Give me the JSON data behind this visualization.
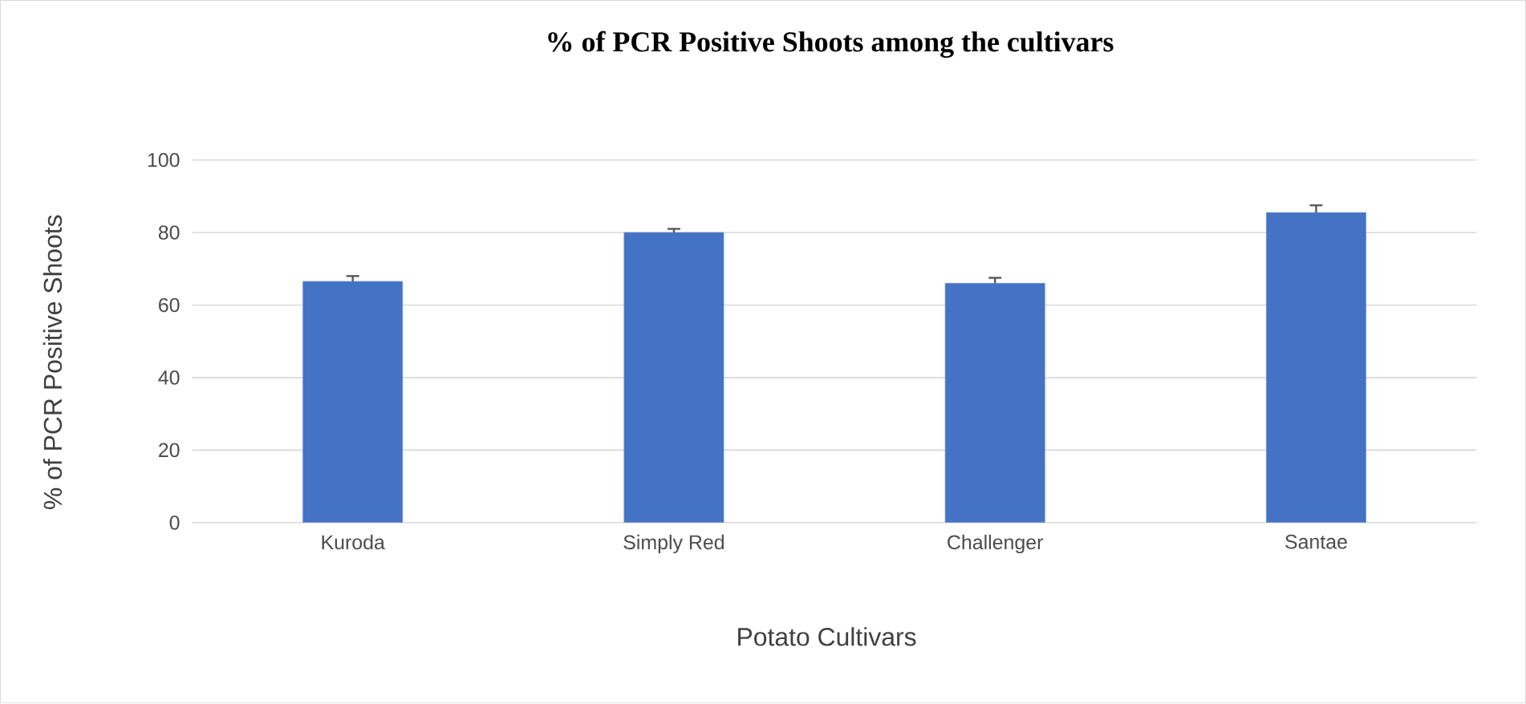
{
  "chart_data": {
    "type": "bar",
    "title": "% of PCR  Positive Shoots among the cultivars",
    "xlabel": "Potato Cultivars",
    "ylabel": "% of PCR Positive Shoots",
    "categories": [
      "Kuroda",
      "Simply Red",
      "Challenger",
      "Santae"
    ],
    "values": [
      66.5,
      80,
      66,
      85.5
    ],
    "errors": [
      1.5,
      1,
      1.5,
      2
    ],
    "color": "#4472c4",
    "ylim": [
      0,
      100
    ],
    "yticks": [
      0,
      20,
      40,
      60,
      80,
      100
    ],
    "grid": "y"
  }
}
